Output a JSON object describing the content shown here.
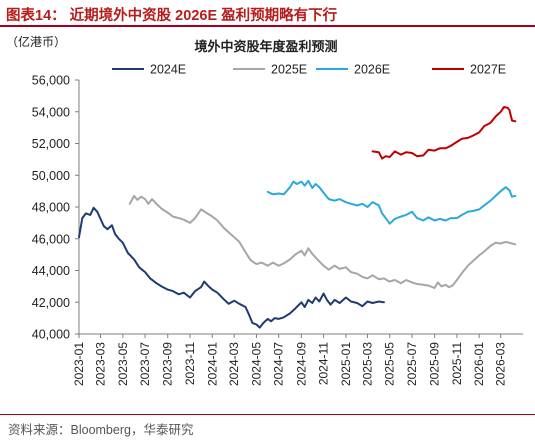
{
  "figure_title": "图表14：  近期境外中资股 2026E 盈利预期略有下行",
  "source": "资料来源：Bloomberg，华泰研究",
  "colors": {
    "accent": "#a4001d",
    "s2024": "#1f3b73",
    "s2025": "#a6a6a6",
    "s2026": "#2aa9df",
    "s2027": "#c00000"
  },
  "chart_data": {
    "type": "line",
    "title": "境外中资股年度盈利预测",
    "unit_label": "（亿港币）",
    "xlabel": "",
    "ylabel": "",
    "ylim": [
      40000,
      56000
    ],
    "y_ticks": [
      40000,
      42000,
      44000,
      46000,
      48000,
      50000,
      52000,
      54000,
      56000
    ],
    "y_tick_labels": [
      "40,000",
      "42,000",
      "44,000",
      "46,000",
      "48,000",
      "50,000",
      "52,000",
      "54,000",
      "56,000"
    ],
    "x_ticks": [
      "2023-01",
      "2023-03",
      "2023-05",
      "2023-07",
      "2023-09",
      "2023-11",
      "2024-01",
      "2024-03",
      "2024-05",
      "2024-07",
      "2024-09",
      "2024-11",
      "2025-01",
      "2025-03",
      "2025-05",
      "2025-07",
      "2025-09",
      "2025-11",
      "2026-01",
      "2026-03"
    ],
    "x_range": [
      "2023-01",
      "2026-05"
    ],
    "grid": false,
    "legend_position": "top",
    "series": [
      {
        "name": "2024E",
        "color": "#1f3b73",
        "points": [
          [
            "2023-01-01",
            46100
          ],
          [
            "2023-01-10",
            47300
          ],
          [
            "2023-01-20",
            47600
          ],
          [
            "2023-02-01",
            47500
          ],
          [
            "2023-02-10",
            47950
          ],
          [
            "2023-02-20",
            47700
          ],
          [
            "2023-03-01",
            47250
          ],
          [
            "2023-03-10",
            46800
          ],
          [
            "2023-03-20",
            46600
          ],
          [
            "2023-04-01",
            46850
          ],
          [
            "2023-04-10",
            46300
          ],
          [
            "2023-04-20",
            46000
          ],
          [
            "2023-05-01",
            45750
          ],
          [
            "2023-05-15",
            45100
          ],
          [
            "2023-06-01",
            44700
          ],
          [
            "2023-06-15",
            44200
          ],
          [
            "2023-07-01",
            43900
          ],
          [
            "2023-07-15",
            43500
          ],
          [
            "2023-08-01",
            43200
          ],
          [
            "2023-08-15",
            43000
          ],
          [
            "2023-09-01",
            42800
          ],
          [
            "2023-09-15",
            42700
          ],
          [
            "2023-10-01",
            42500
          ],
          [
            "2023-10-15",
            42600
          ],
          [
            "2023-11-01",
            42300
          ],
          [
            "2023-11-15",
            42700
          ],
          [
            "2023-12-01",
            42950
          ],
          [
            "2023-12-10",
            43300
          ],
          [
            "2023-12-20",
            43050
          ],
          [
            "2024-01-01",
            42800
          ],
          [
            "2024-01-15",
            42600
          ],
          [
            "2024-02-01",
            42200
          ],
          [
            "2024-02-15",
            41900
          ],
          [
            "2024-03-01",
            42100
          ],
          [
            "2024-03-15",
            41900
          ],
          [
            "2024-04-01",
            41700
          ],
          [
            "2024-04-10",
            41250
          ],
          [
            "2024-04-20",
            40700
          ],
          [
            "2024-05-01",
            40600
          ],
          [
            "2024-05-10",
            40400
          ],
          [
            "2024-05-20",
            40700
          ],
          [
            "2024-06-01",
            40950
          ],
          [
            "2024-06-10",
            40800
          ],
          [
            "2024-06-20",
            41000
          ],
          [
            "2024-07-01",
            40950
          ],
          [
            "2024-07-15",
            41050
          ],
          [
            "2024-08-01",
            41300
          ],
          [
            "2024-08-15",
            41600
          ],
          [
            "2024-09-01",
            42000
          ],
          [
            "2024-09-10",
            41700
          ],
          [
            "2024-09-20",
            42150
          ],
          [
            "2024-10-01",
            41950
          ],
          [
            "2024-10-10",
            42300
          ],
          [
            "2024-10-20",
            42050
          ],
          [
            "2024-11-01",
            42550
          ],
          [
            "2024-11-10",
            42150
          ],
          [
            "2024-11-20",
            41850
          ],
          [
            "2024-12-01",
            42150
          ],
          [
            "2024-12-15",
            41950
          ],
          [
            "2025-01-01",
            42300
          ],
          [
            "2025-01-15",
            42050
          ],
          [
            "2025-02-01",
            41950
          ],
          [
            "2025-02-15",
            41750
          ],
          [
            "2025-03-01",
            42050
          ],
          [
            "2025-03-15",
            41950
          ],
          [
            "2025-04-01",
            42050
          ],
          [
            "2025-04-15",
            42000
          ]
        ]
      },
      {
        "name": "2025E",
        "color": "#a6a6a6",
        "points": [
          [
            "2023-05-20",
            48200
          ],
          [
            "2023-06-01",
            48700
          ],
          [
            "2023-06-10",
            48450
          ],
          [
            "2023-06-20",
            48650
          ],
          [
            "2023-07-01",
            48500
          ],
          [
            "2023-07-10",
            48200
          ],
          [
            "2023-07-20",
            48500
          ],
          [
            "2023-08-01",
            48200
          ],
          [
            "2023-08-15",
            47900
          ],
          [
            "2023-09-01",
            47650
          ],
          [
            "2023-09-15",
            47400
          ],
          [
            "2023-10-01",
            47300
          ],
          [
            "2023-10-15",
            47200
          ],
          [
            "2023-11-01",
            47000
          ],
          [
            "2023-11-15",
            47300
          ],
          [
            "2023-12-01",
            47850
          ],
          [
            "2023-12-15",
            47650
          ],
          [
            "2024-01-01",
            47400
          ],
          [
            "2024-01-15",
            47150
          ],
          [
            "2024-02-01",
            46700
          ],
          [
            "2024-02-15",
            46400
          ],
          [
            "2024-03-01",
            46100
          ],
          [
            "2024-03-15",
            45800
          ],
          [
            "2024-04-01",
            45150
          ],
          [
            "2024-04-15",
            44650
          ],
          [
            "2024-05-01",
            44400
          ],
          [
            "2024-05-15",
            44500
          ],
          [
            "2024-06-01",
            44300
          ],
          [
            "2024-06-15",
            44500
          ],
          [
            "2024-07-01",
            44300
          ],
          [
            "2024-07-15",
            44450
          ],
          [
            "2024-08-01",
            44700
          ],
          [
            "2024-08-15",
            45000
          ],
          [
            "2024-09-01",
            45250
          ],
          [
            "2024-09-10",
            44950
          ],
          [
            "2024-09-20",
            45400
          ],
          [
            "2024-10-01",
            45050
          ],
          [
            "2024-10-15",
            44700
          ],
          [
            "2024-11-01",
            44300
          ],
          [
            "2024-11-15",
            44050
          ],
          [
            "2024-12-01",
            44300
          ],
          [
            "2024-12-15",
            44100
          ],
          [
            "2025-01-01",
            44200
          ],
          [
            "2025-01-15",
            43900
          ],
          [
            "2025-02-01",
            43800
          ],
          [
            "2025-02-15",
            43600
          ],
          [
            "2025-03-01",
            43500
          ],
          [
            "2025-03-15",
            43700
          ],
          [
            "2025-04-01",
            43450
          ],
          [
            "2025-04-15",
            43500
          ],
          [
            "2025-05-01",
            43300
          ],
          [
            "2025-05-15",
            43400
          ],
          [
            "2025-06-01",
            43200
          ],
          [
            "2025-06-15",
            43400
          ],
          [
            "2025-07-01",
            43250
          ],
          [
            "2025-07-15",
            43150
          ],
          [
            "2025-08-01",
            43100
          ],
          [
            "2025-08-15",
            43050
          ],
          [
            "2025-09-01",
            42900
          ],
          [
            "2025-09-10",
            43250
          ],
          [
            "2025-09-20",
            43000
          ],
          [
            "2025-10-01",
            43100
          ],
          [
            "2025-10-10",
            42950
          ],
          [
            "2025-10-20",
            43050
          ],
          [
            "2025-11-01",
            43400
          ],
          [
            "2025-11-15",
            43850
          ],
          [
            "2025-12-01",
            44300
          ],
          [
            "2025-12-15",
            44600
          ],
          [
            "2026-01-01",
            44950
          ],
          [
            "2026-01-15",
            45200
          ],
          [
            "2026-02-01",
            45550
          ],
          [
            "2026-02-15",
            45750
          ],
          [
            "2026-03-01",
            45700
          ],
          [
            "2026-03-15",
            45800
          ],
          [
            "2026-04-01",
            45700
          ],
          [
            "2026-04-10",
            45650
          ]
        ]
      },
      {
        "name": "2026E",
        "color": "#2aa9df",
        "points": [
          [
            "2024-06-01",
            48950
          ],
          [
            "2024-06-15",
            48800
          ],
          [
            "2024-07-01",
            48850
          ],
          [
            "2024-07-15",
            48800
          ],
          [
            "2024-08-01",
            49250
          ],
          [
            "2024-08-10",
            49600
          ],
          [
            "2024-08-20",
            49450
          ],
          [
            "2024-09-01",
            49600
          ],
          [
            "2024-09-10",
            49350
          ],
          [
            "2024-09-20",
            49650
          ],
          [
            "2024-10-01",
            49200
          ],
          [
            "2024-10-10",
            49450
          ],
          [
            "2024-10-20",
            49250
          ],
          [
            "2024-11-01",
            48900
          ],
          [
            "2024-11-15",
            48500
          ],
          [
            "2024-12-01",
            48400
          ],
          [
            "2024-12-15",
            48500
          ],
          [
            "2025-01-01",
            48300
          ],
          [
            "2025-01-15",
            48200
          ],
          [
            "2025-02-01",
            48100
          ],
          [
            "2025-02-15",
            48200
          ],
          [
            "2025-03-01",
            48000
          ],
          [
            "2025-03-15",
            48300
          ],
          [
            "2025-04-01",
            48100
          ],
          [
            "2025-04-10",
            47600
          ],
          [
            "2025-04-20",
            47300
          ],
          [
            "2025-05-01",
            46950
          ],
          [
            "2025-05-15",
            47250
          ],
          [
            "2025-06-01",
            47400
          ],
          [
            "2025-06-15",
            47500
          ],
          [
            "2025-07-01",
            47700
          ],
          [
            "2025-07-15",
            47300
          ],
          [
            "2025-08-01",
            47150
          ],
          [
            "2025-08-15",
            47350
          ],
          [
            "2025-09-01",
            47150
          ],
          [
            "2025-09-15",
            47250
          ],
          [
            "2025-10-01",
            47150
          ],
          [
            "2025-10-15",
            47300
          ],
          [
            "2025-11-01",
            47300
          ],
          [
            "2025-11-15",
            47500
          ],
          [
            "2025-12-01",
            47700
          ],
          [
            "2025-12-15",
            47750
          ],
          [
            "2026-01-01",
            47850
          ],
          [
            "2026-01-15",
            48100
          ],
          [
            "2026-02-01",
            48400
          ],
          [
            "2026-02-15",
            48700
          ],
          [
            "2026-03-01",
            49000
          ],
          [
            "2026-03-15",
            49250
          ],
          [
            "2026-03-25",
            49050
          ],
          [
            "2026-04-01",
            48650
          ],
          [
            "2026-04-10",
            48700
          ]
        ]
      },
      {
        "name": "2027E",
        "color": "#c00000",
        "points": [
          [
            "2025-03-15",
            51500
          ],
          [
            "2025-04-01",
            51450
          ],
          [
            "2025-04-10",
            51050
          ],
          [
            "2025-04-20",
            51200
          ],
          [
            "2025-05-01",
            51150
          ],
          [
            "2025-05-15",
            51500
          ],
          [
            "2025-06-01",
            51300
          ],
          [
            "2025-06-15",
            51450
          ],
          [
            "2025-07-01",
            51400
          ],
          [
            "2025-07-15",
            51200
          ],
          [
            "2025-08-01",
            51250
          ],
          [
            "2025-08-15",
            51600
          ],
          [
            "2025-09-01",
            51550
          ],
          [
            "2025-09-15",
            51700
          ],
          [
            "2025-10-01",
            51700
          ],
          [
            "2025-10-15",
            51850
          ],
          [
            "2025-11-01",
            52100
          ],
          [
            "2025-11-15",
            52300
          ],
          [
            "2025-12-01",
            52350
          ],
          [
            "2025-12-15",
            52500
          ],
          [
            "2026-01-01",
            52700
          ],
          [
            "2026-01-15",
            53100
          ],
          [
            "2026-02-01",
            53300
          ],
          [
            "2026-02-15",
            53700
          ],
          [
            "2026-03-01",
            54000
          ],
          [
            "2026-03-10",
            54300
          ],
          [
            "2026-03-20",
            54250
          ],
          [
            "2026-03-25",
            54100
          ],
          [
            "2026-04-01",
            53450
          ],
          [
            "2026-04-10",
            53400
          ]
        ]
      }
    ]
  }
}
